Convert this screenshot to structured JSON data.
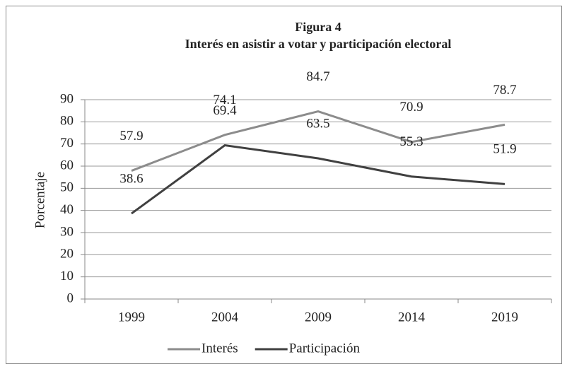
{
  "chart_data": {
    "type": "line",
    "title": "Figura 4",
    "subtitle": "Interés en asistir a votar y participación electoral",
    "ylabel": "Porcentaje",
    "categories": [
      "1999",
      "2004",
      "2009",
      "2014",
      "2019"
    ],
    "series": [
      {
        "name": "Interés",
        "color": "#8c8c8c",
        "values": [
          57.9,
          74.1,
          84.7,
          70.9,
          78.7
        ]
      },
      {
        "name": "Participación",
        "color": "#404040",
        "values": [
          38.6,
          69.4,
          63.5,
          55.3,
          51.9
        ]
      }
    ],
    "ylim": [
      0,
      90
    ],
    "yticks": [
      0,
      10,
      20,
      30,
      40,
      50,
      60,
      70,
      80,
      90
    ],
    "grid": true,
    "legend": "bottom"
  }
}
